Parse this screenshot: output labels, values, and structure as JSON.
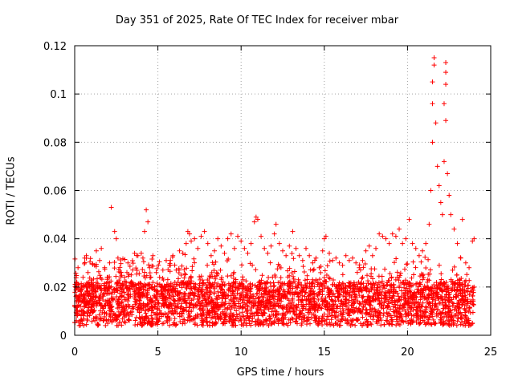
{
  "chart_data": {
    "type": "scatter",
    "title": "Day 351 of 2025, Rate Of TEC Index for receiver mbar",
    "xlabel": "GPS time / hours",
    "ylabel": "ROTI / TECUs",
    "xlim": [
      0,
      25
    ],
    "ylim": [
      0,
      0.12
    ],
    "x_ticks": [
      "0",
      "5",
      "10",
      "15",
      "20",
      "25"
    ],
    "y_ticks": [
      "0",
      "0.02",
      "0.04",
      "0.06",
      "0.08",
      "0.1",
      "0.12"
    ],
    "grid": true,
    "marker": "plus",
    "color": "#ff0000",
    "series": [
      {
        "points": [
          [
            0.0,
            0.012
          ],
          [
            0.1,
            0.022
          ],
          [
            0.2,
            0.028
          ],
          [
            0.3,
            0.019
          ],
          [
            0.5,
            0.024
          ],
          [
            0.6,
            0.032
          ],
          [
            0.7,
            0.033
          ],
          [
            0.8,
            0.026
          ],
          [
            1.0,
            0.021
          ],
          [
            1.2,
            0.029
          ],
          [
            1.3,
            0.035
          ],
          [
            1.5,
            0.031
          ],
          [
            1.6,
            0.036
          ],
          [
            1.8,
            0.028
          ],
          [
            2.0,
            0.024
          ],
          [
            2.1,
            0.03
          ],
          [
            2.2,
            0.053
          ],
          [
            2.4,
            0.043
          ],
          [
            2.5,
            0.04
          ],
          [
            2.6,
            0.032
          ],
          [
            2.8,
            0.026
          ],
          [
            3.0,
            0.024
          ],
          [
            3.2,
            0.03
          ],
          [
            3.4,
            0.025
          ],
          [
            3.6,
            0.034
          ],
          [
            3.8,
            0.033
          ],
          [
            4.0,
            0.034
          ],
          [
            4.1,
            0.032
          ],
          [
            4.2,
            0.043
          ],
          [
            4.3,
            0.052
          ],
          [
            4.4,
            0.047
          ],
          [
            4.5,
            0.028
          ],
          [
            4.7,
            0.033
          ],
          [
            4.9,
            0.026
          ],
          [
            5.1,
            0.024
          ],
          [
            5.3,
            0.027
          ],
          [
            5.5,
            0.031
          ],
          [
            5.7,
            0.029
          ],
          [
            5.9,
            0.033
          ],
          [
            6.1,
            0.027
          ],
          [
            6.3,
            0.035
          ],
          [
            6.5,
            0.034
          ],
          [
            6.7,
            0.038
          ],
          [
            6.8,
            0.043
          ],
          [
            6.9,
            0.042
          ],
          [
            7.0,
            0.039
          ],
          [
            7.2,
            0.04
          ],
          [
            7.4,
            0.036
          ],
          [
            7.6,
            0.041
          ],
          [
            7.8,
            0.043
          ],
          [
            8.0,
            0.038
          ],
          [
            8.2,
            0.033
          ],
          [
            8.4,
            0.035
          ],
          [
            8.6,
            0.04
          ],
          [
            8.8,
            0.037
          ],
          [
            9.0,
            0.034
          ],
          [
            9.2,
            0.04
          ],
          [
            9.4,
            0.042
          ],
          [
            9.6,
            0.036
          ],
          [
            9.8,
            0.041
          ],
          [
            10.0,
            0.039
          ],
          [
            10.2,
            0.036
          ],
          [
            10.4,
            0.034
          ],
          [
            10.6,
            0.038
          ],
          [
            10.8,
            0.047
          ],
          [
            10.9,
            0.049
          ],
          [
            11.0,
            0.048
          ],
          [
            11.2,
            0.041
          ],
          [
            11.4,
            0.036
          ],
          [
            11.6,
            0.034
          ],
          [
            11.8,
            0.037
          ],
          [
            12.0,
            0.042
          ],
          [
            12.1,
            0.046
          ],
          [
            12.3,
            0.038
          ],
          [
            12.5,
            0.035
          ],
          [
            12.7,
            0.033
          ],
          [
            12.9,
            0.037
          ],
          [
            13.1,
            0.043
          ],
          [
            13.3,
            0.036
          ],
          [
            13.5,
            0.033
          ],
          [
            13.7,
            0.031
          ],
          [
            13.9,
            0.036
          ],
          [
            14.1,
            0.033
          ],
          [
            14.3,
            0.03
          ],
          [
            14.5,
            0.032
          ],
          [
            14.7,
            0.028
          ],
          [
            14.9,
            0.035
          ],
          [
            15.0,
            0.04
          ],
          [
            15.1,
            0.041
          ],
          [
            15.3,
            0.034
          ],
          [
            15.5,
            0.031
          ],
          [
            15.7,
            0.032
          ],
          [
            15.9,
            0.03
          ],
          [
            16.1,
            0.029
          ],
          [
            16.3,
            0.033
          ],
          [
            16.5,
            0.031
          ],
          [
            16.7,
            0.032
          ],
          [
            16.9,
            0.03
          ],
          [
            17.1,
            0.028
          ],
          [
            17.3,
            0.031
          ],
          [
            17.5,
            0.035
          ],
          [
            17.7,
            0.037
          ],
          [
            17.9,
            0.033
          ],
          [
            18.1,
            0.036
          ],
          [
            18.3,
            0.042
          ],
          [
            18.5,
            0.041
          ],
          [
            18.7,
            0.04
          ],
          [
            18.9,
            0.038
          ],
          [
            19.1,
            0.042
          ],
          [
            19.3,
            0.041
          ],
          [
            19.5,
            0.044
          ],
          [
            19.7,
            0.038
          ],
          [
            19.9,
            0.04
          ],
          [
            20.1,
            0.048
          ],
          [
            20.3,
            0.038
          ],
          [
            20.5,
            0.036
          ],
          [
            20.7,
            0.033
          ],
          [
            20.9,
            0.035
          ],
          [
            21.1,
            0.038
          ],
          [
            21.3,
            0.046
          ],
          [
            21.4,
            0.06
          ],
          [
            21.5,
            0.08
          ],
          [
            21.5,
            0.096
          ],
          [
            21.5,
            0.105
          ],
          [
            21.6,
            0.115
          ],
          [
            21.6,
            0.112
          ],
          [
            21.7,
            0.088
          ],
          [
            21.8,
            0.07
          ],
          [
            21.9,
            0.062
          ],
          [
            22.0,
            0.055
          ],
          [
            22.1,
            0.05
          ],
          [
            22.2,
            0.072
          ],
          [
            22.2,
            0.096
          ],
          [
            22.3,
            0.104
          ],
          [
            22.3,
            0.109
          ],
          [
            22.3,
            0.113
          ],
          [
            22.3,
            0.089
          ],
          [
            22.4,
            0.067
          ],
          [
            22.5,
            0.058
          ],
          [
            22.6,
            0.05
          ],
          [
            22.8,
            0.044
          ],
          [
            23.0,
            0.038
          ],
          [
            23.2,
            0.032
          ],
          [
            23.3,
            0.048
          ],
          [
            23.5,
            0.03
          ],
          [
            23.7,
            0.028
          ],
          [
            23.9,
            0.039
          ],
          [
            24.0,
            0.04
          ]
        ]
      }
    ]
  }
}
